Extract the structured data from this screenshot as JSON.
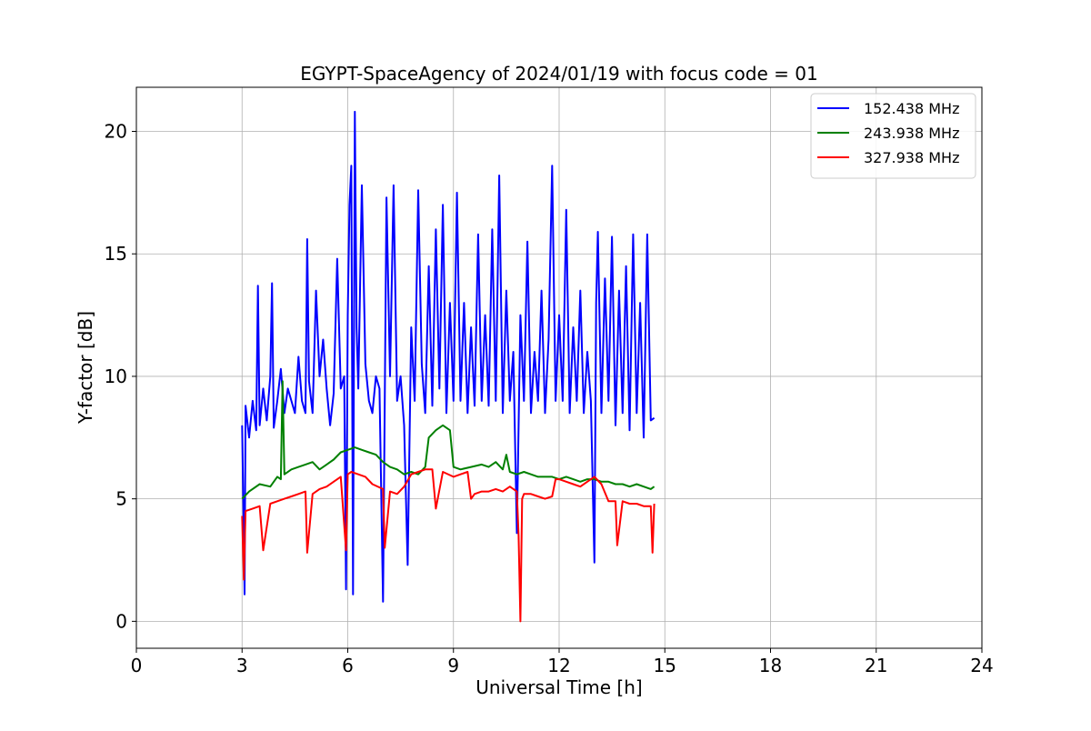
{
  "chart_data": {
    "type": "line",
    "title": "EGYPT-SpaceAgency of 2024/01/19 with focus code = 01",
    "xlabel": "Universal Time [h]",
    "ylabel": "Y-factor [dB]",
    "xlim": [
      0,
      24
    ],
    "ylim": [
      -1.1,
      21.8
    ],
    "xticks": [
      0,
      3,
      6,
      9,
      12,
      15,
      18,
      21,
      24
    ],
    "yticks": [
      0,
      5,
      10,
      15,
      20
    ],
    "grid": true,
    "legend_position": "top-right",
    "series": [
      {
        "name": "152.438 MHz",
        "color": "#0000ff",
        "x": [
          3.0,
          3.05,
          3.07,
          3.1,
          3.2,
          3.3,
          3.4,
          3.45,
          3.5,
          3.6,
          3.7,
          3.8,
          3.85,
          3.9,
          4.0,
          4.1,
          4.2,
          4.3,
          4.4,
          4.5,
          4.6,
          4.7,
          4.8,
          4.85,
          4.9,
          5.0,
          5.1,
          5.2,
          5.3,
          5.4,
          5.5,
          5.6,
          5.7,
          5.8,
          5.9,
          5.95,
          6.0,
          6.05,
          6.1,
          6.15,
          6.2,
          6.25,
          6.3,
          6.4,
          6.5,
          6.6,
          6.7,
          6.8,
          6.9,
          7.0,
          7.05,
          7.1,
          7.2,
          7.3,
          7.4,
          7.5,
          7.6,
          7.7,
          7.8,
          7.9,
          8.0,
          8.1,
          8.2,
          8.3,
          8.4,
          8.5,
          8.6,
          8.7,
          8.8,
          8.9,
          9.0,
          9.1,
          9.2,
          9.3,
          9.4,
          9.5,
          9.6,
          9.7,
          9.8,
          9.9,
          10.0,
          10.1,
          10.2,
          10.3,
          10.4,
          10.5,
          10.6,
          10.7,
          10.8,
          10.9,
          11.0,
          11.1,
          11.2,
          11.3,
          11.4,
          11.5,
          11.6,
          11.7,
          11.8,
          11.9,
          12.0,
          12.1,
          12.2,
          12.3,
          12.4,
          12.5,
          12.6,
          12.7,
          12.8,
          12.9,
          13.0,
          13.05,
          13.1,
          13.2,
          13.3,
          13.4,
          13.5,
          13.6,
          13.7,
          13.8,
          13.9,
          14.0,
          14.1,
          14.2,
          14.3,
          14.4,
          14.5,
          14.6,
          14.7
        ],
        "values": [
          8.0,
          3.3,
          1.1,
          8.8,
          7.5,
          9.0,
          7.8,
          13.7,
          8.0,
          9.5,
          8.2,
          10.0,
          13.8,
          7.9,
          9.0,
          10.3,
          8.5,
          9.5,
          9.0,
          8.5,
          10.8,
          9.0,
          8.5,
          15.6,
          9.8,
          8.5,
          13.5,
          10.0,
          11.5,
          9.5,
          8.0,
          9.3,
          14.8,
          9.5,
          10.0,
          1.3,
          12.5,
          17.0,
          18.6,
          1.1,
          20.8,
          12.0,
          9.5,
          17.8,
          10.5,
          9.0,
          8.5,
          10.0,
          9.5,
          0.8,
          9.0,
          17.3,
          10.0,
          17.8,
          9.0,
          10.0,
          8.0,
          2.3,
          12.0,
          9.0,
          17.6,
          10.5,
          8.5,
          14.5,
          8.8,
          16.0,
          9.5,
          17.0,
          8.5,
          13.0,
          9.0,
          17.5,
          9.0,
          13.0,
          8.5,
          12.0,
          8.8,
          15.8,
          9.0,
          12.5,
          8.8,
          16.0,
          9.0,
          18.2,
          8.5,
          13.5,
          9.0,
          11.0,
          3.6,
          12.5,
          9.0,
          15.5,
          8.5,
          11.0,
          9.0,
          13.5,
          8.5,
          11.5,
          18.6,
          9.0,
          12.5,
          9.0,
          16.8,
          8.5,
          12.0,
          9.0,
          13.5,
          8.5,
          11.0,
          9.0,
          2.4,
          13.0,
          15.9,
          8.5,
          14.0,
          9.0,
          15.7,
          8.0,
          13.5,
          8.5,
          14.5,
          7.8,
          15.8,
          8.5,
          13.0,
          7.5,
          15.8,
          8.2,
          8.3
        ]
      },
      {
        "name": "243.938 MHz",
        "color": "#008000",
        "x": [
          3.0,
          3.2,
          3.5,
          3.8,
          4.0,
          4.1,
          4.15,
          4.2,
          4.4,
          4.6,
          4.8,
          5.0,
          5.2,
          5.4,
          5.6,
          5.8,
          6.0,
          6.2,
          6.4,
          6.6,
          6.8,
          7.0,
          7.2,
          7.4,
          7.6,
          7.8,
          8.0,
          8.2,
          8.3,
          8.5,
          8.7,
          8.9,
          9.0,
          9.2,
          9.5,
          9.8,
          10.0,
          10.2,
          10.4,
          10.5,
          10.6,
          10.8,
          11.0,
          11.2,
          11.4,
          11.6,
          11.8,
          12.0,
          12.2,
          12.4,
          12.6,
          12.8,
          13.0,
          13.2,
          13.4,
          13.6,
          13.8,
          14.0,
          14.2,
          14.4,
          14.6,
          14.7
        ],
        "values": [
          5.0,
          5.3,
          5.6,
          5.5,
          5.9,
          5.8,
          9.8,
          6.0,
          6.2,
          6.3,
          6.4,
          6.5,
          6.2,
          6.4,
          6.6,
          6.9,
          7.0,
          7.1,
          7.0,
          6.9,
          6.8,
          6.5,
          6.3,
          6.2,
          6.0,
          6.1,
          6.0,
          6.3,
          7.5,
          7.8,
          8.0,
          7.8,
          6.3,
          6.2,
          6.3,
          6.4,
          6.3,
          6.5,
          6.2,
          6.8,
          6.1,
          6.0,
          6.1,
          6.0,
          5.9,
          5.9,
          5.9,
          5.8,
          5.9,
          5.8,
          5.7,
          5.8,
          5.8,
          5.7,
          5.7,
          5.6,
          5.6,
          5.5,
          5.6,
          5.5,
          5.4,
          5.5
        ]
      },
      {
        "name": "327.938 MHz",
        "color": "#ff0000",
        "x": [
          3.0,
          3.05,
          3.1,
          3.3,
          3.5,
          3.6,
          3.8,
          4.0,
          4.2,
          4.4,
          4.6,
          4.8,
          4.85,
          5.0,
          5.2,
          5.4,
          5.6,
          5.8,
          5.95,
          6.0,
          6.1,
          6.3,
          6.5,
          6.7,
          7.0,
          7.05,
          7.2,
          7.4,
          7.6,
          7.8,
          8.0,
          8.2,
          8.4,
          8.5,
          8.7,
          9.0,
          9.2,
          9.4,
          9.5,
          9.6,
          9.8,
          10.0,
          10.2,
          10.4,
          10.6,
          10.8,
          10.85,
          10.9,
          10.95,
          11.0,
          11.2,
          11.4,
          11.6,
          11.8,
          11.9,
          12.0,
          12.2,
          12.4,
          12.6,
          12.8,
          13.0,
          13.2,
          13.4,
          13.6,
          13.65,
          13.8,
          14.0,
          14.2,
          14.4,
          14.6,
          14.65,
          14.7
        ],
        "values": [
          4.3,
          1.7,
          4.5,
          4.6,
          4.7,
          2.9,
          4.8,
          4.9,
          5.0,
          5.1,
          5.2,
          5.3,
          2.8,
          5.2,
          5.4,
          5.5,
          5.7,
          5.9,
          2.9,
          6.0,
          6.1,
          6.0,
          5.9,
          5.6,
          5.4,
          3.0,
          5.3,
          5.2,
          5.5,
          6.0,
          6.1,
          6.2,
          6.2,
          4.6,
          6.1,
          5.9,
          6.0,
          6.1,
          5.0,
          5.2,
          5.3,
          5.3,
          5.4,
          5.3,
          5.5,
          5.3,
          3.5,
          0.0,
          5.0,
          5.2,
          5.2,
          5.1,
          5.0,
          5.1,
          5.8,
          5.8,
          5.7,
          5.6,
          5.5,
          5.7,
          5.9,
          5.6,
          4.9,
          4.9,
          3.1,
          4.9,
          4.8,
          4.8,
          4.7,
          4.7,
          2.8,
          4.8
        ]
      }
    ]
  }
}
